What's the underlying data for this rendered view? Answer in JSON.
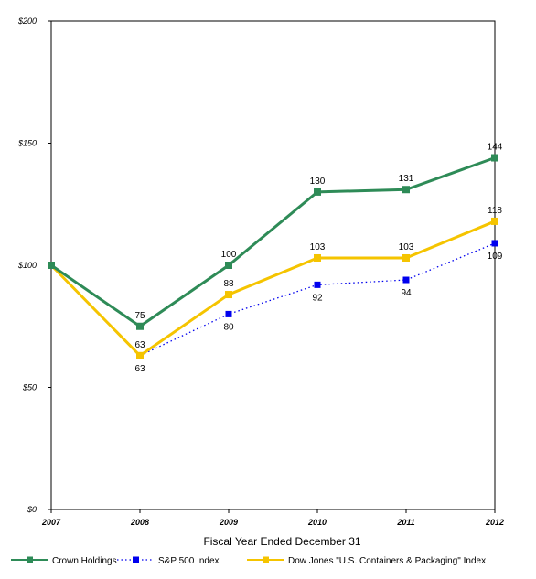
{
  "chart_data": {
    "type": "line",
    "title": "",
    "xlabel": "Fiscal Year Ended December 31",
    "ylabel": "",
    "x": [
      "2007",
      "2008",
      "2009",
      "2010",
      "2011",
      "2012"
    ],
    "ylim": [
      0,
      200
    ],
    "yticks": [
      0,
      50,
      100,
      150,
      200
    ],
    "ytick_labels": [
      "$0",
      "$50",
      "$100",
      "$150",
      "$200"
    ],
    "grid": false,
    "legend_placement": "bottom",
    "series": [
      {
        "name": "Crown Holdings",
        "values": [
          100,
          75,
          100,
          130,
          131,
          144
        ],
        "color": "#2e8b57",
        "style": "solid",
        "labels": [
          "",
          "75",
          "100",
          "130",
          "131",
          "144"
        ],
        "label_pos": [
          "above",
          "above",
          "above",
          "above",
          "above",
          "above"
        ]
      },
      {
        "name": "S&P 500 Index",
        "values": [
          100,
          63,
          80,
          92,
          94,
          109
        ],
        "color": "#0000ee",
        "style": "dotted",
        "labels": [
          "",
          "63",
          "80",
          "92",
          "94",
          "109"
        ],
        "label_pos": [
          "below",
          "below",
          "below",
          "below",
          "below",
          "below"
        ]
      },
      {
        "name": "Dow Jones \"U.S. Containers & Packaging\" Index",
        "values": [
          100,
          63,
          88,
          103,
          103,
          118
        ],
        "color": "#f5c400",
        "style": "solid",
        "labels": [
          "",
          "63",
          "88",
          "103",
          "103",
          "118"
        ],
        "label_pos": [
          "above",
          "above",
          "above",
          "above",
          "above",
          "above"
        ]
      }
    ]
  }
}
